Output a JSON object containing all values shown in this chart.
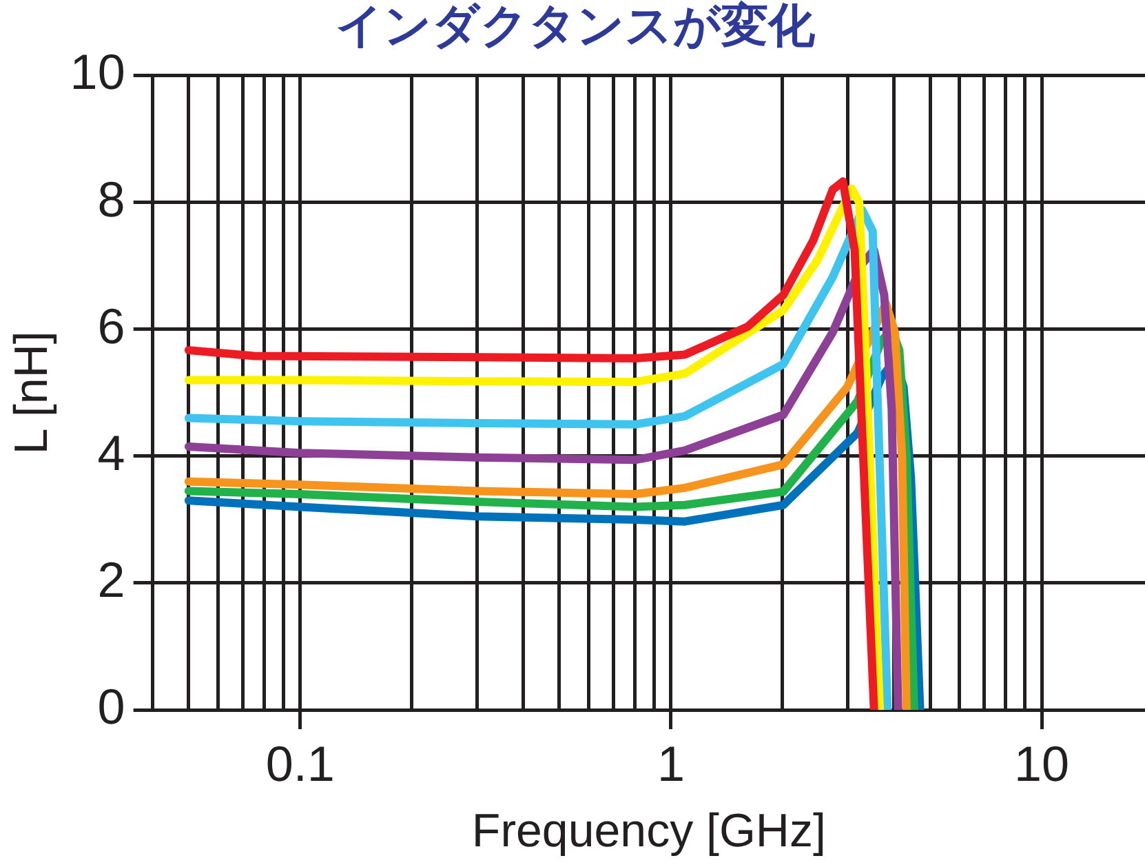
{
  "chart_data": {
    "type": "line",
    "title": "インダクタンスが変化",
    "xlabel": "Frequency [GHz]",
    "ylabel": "L [nH]",
    "log": "x",
    "grid": true,
    "legend": false,
    "marker": "none",
    "line_style": "solid",
    "xlim": [
      0.04,
      19
    ],
    "xticks": [
      {
        "value": 0.05,
        "label": null
      },
      {
        "value": 0.06,
        "label": null
      },
      {
        "value": 0.07,
        "label": null
      },
      {
        "value": 0.08,
        "label": null
      },
      {
        "value": 0.09,
        "label": null
      },
      0.1,
      {
        "value": 0.2,
        "label": null
      },
      {
        "value": 0.3,
        "label": null
      },
      {
        "value": 0.4,
        "label": null
      },
      {
        "value": 0.5,
        "label": null
      },
      {
        "value": 0.6,
        "label": null
      },
      {
        "value": 0.7,
        "label": null
      },
      {
        "value": 0.8,
        "label": null
      },
      {
        "value": 0.9,
        "label": null
      },
      1,
      {
        "value": 2,
        "label": null
      },
      {
        "value": 3,
        "label": null
      },
      {
        "value": 4,
        "label": null
      },
      {
        "value": 5,
        "label": null
      },
      {
        "value": 6,
        "label": null
      },
      {
        "value": 7,
        "label": null
      },
      {
        "value": 8,
        "label": null
      },
      {
        "value": 9,
        "label": null
      },
      10
    ],
    "ylim": [
      0,
      10
    ],
    "yticks": [
      0,
      2,
      4,
      6,
      8,
      10
    ],
    "series": [
      {
        "color": "#ed1c24",
        "x": [
          0.05,
          0.075,
          0.3,
          0.8,
          1.09,
          1.61,
          2.01,
          2.42,
          2.73,
          2.91,
          3.13,
          3.28,
          3.53
        ],
        "values": [
          5.67,
          5.58,
          5.56,
          5.54,
          5.6,
          6.04,
          6.54,
          7.4,
          8.2,
          8.33,
          7.25,
          4.37,
          0
        ]
      },
      {
        "color": "#fff200",
        "x": [
          0.05,
          0.1,
          0.3,
          0.8,
          1.09,
          2.01,
          2.49,
          3.07,
          3.22,
          3.34,
          3.66
        ],
        "values": [
          5.2,
          5.2,
          5.18,
          5.17,
          5.3,
          6.3,
          7.1,
          8.22,
          8.0,
          5.8,
          0
        ]
      },
      {
        "color": "#3fc4f0",
        "x": [
          0.05,
          0.1,
          0.3,
          0.8,
          1.09,
          2.01,
          2.73,
          3.28,
          3.5,
          3.6,
          3.84
        ],
        "values": [
          4.6,
          4.55,
          4.52,
          4.5,
          4.63,
          5.45,
          6.82,
          7.88,
          7.55,
          5.1,
          0
        ]
      },
      {
        "color": "#8e3f96",
        "x": [
          0.05,
          0.1,
          0.3,
          0.8,
          1.09,
          2.01,
          2.73,
          3.28,
          3.53,
          3.76,
          3.94,
          4.1
        ],
        "values": [
          4.15,
          4.05,
          3.98,
          3.94,
          4.09,
          4.65,
          5.95,
          7.03,
          7.25,
          6.54,
          4.74,
          0
        ]
      },
      {
        "color": "#f7941d",
        "x": [
          0.05,
          0.1,
          0.3,
          0.8,
          1.09,
          2.01,
          2.99,
          3.5,
          3.8,
          4.02,
          4.2,
          4.32
        ],
        "values": [
          3.6,
          3.55,
          3.45,
          3.4,
          3.5,
          3.87,
          5.09,
          5.95,
          6.41,
          5.95,
          4.0,
          0
        ]
      },
      {
        "color": "#22b24c",
        "x": [
          0.05,
          0.1,
          0.3,
          0.8,
          1.09,
          2.01,
          3.19,
          3.7,
          3.94,
          4.13,
          4.32,
          4.53
        ],
        "values": [
          3.45,
          3.4,
          3.28,
          3.2,
          3.23,
          3.44,
          4.87,
          5.82,
          6.0,
          5.67,
          4.0,
          0
        ]
      },
      {
        "color": "#0072bc",
        "x": [
          0.05,
          0.1,
          0.3,
          0.8,
          1.09,
          2.01,
          3.19,
          3.7,
          4.02,
          4.24,
          4.44,
          4.7
        ],
        "values": [
          3.3,
          3.2,
          3.05,
          3.0,
          2.97,
          3.23,
          4.37,
          5.24,
          5.52,
          5.09,
          3.66,
          0
        ]
      }
    ]
  }
}
